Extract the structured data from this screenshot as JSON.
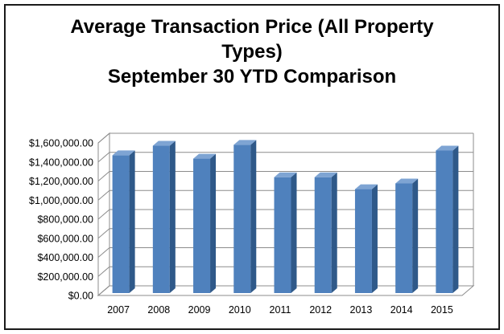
{
  "chart_data": {
    "type": "bar",
    "title_lines": [
      "Average Transaction Price (All Property",
      "Types)",
      "September 30 YTD Comparison"
    ],
    "categories": [
      "2007",
      "2008",
      "2009",
      "2010",
      "2011",
      "2012",
      "2013",
      "2014",
      "2015"
    ],
    "values": [
      1445000,
      1545000,
      1410000,
      1555000,
      1215000,
      1215000,
      1090000,
      1150000,
      1495000
    ],
    "y_tick_labels": [
      "$0.00",
      "$200,000.00",
      "$400,000.00",
      "$600,000.00",
      "$800,000.00",
      "$1,000,000.00",
      "$1,200,000.00",
      "$1,400,000.00",
      "$1,600,000.00"
    ],
    "ylim": [
      0,
      1600000
    ],
    "xlabel": "",
    "ylabel": "",
    "grid": true,
    "legend": "none",
    "style": "3d-column",
    "colors": {
      "bar_front": "#4f81bd",
      "bar_side": "#2f5989",
      "bar_top": "#7ea4d3",
      "grid": "#8c8c8c"
    }
  }
}
